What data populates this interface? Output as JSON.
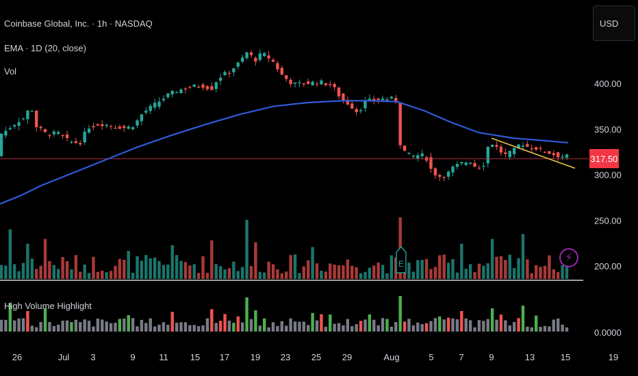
{
  "legend": {
    "symbol": "Coinbase Global, Inc. · 1h · NASDAQ",
    "indicator": "EMA · 1D (20, close)",
    "volume": "Vol",
    "pane2": "High Volume Highlight"
  },
  "currency_button": "USD",
  "last_price_label": "317.50",
  "earnings_marker": "E",
  "colors": {
    "up": "#26a69a",
    "down": "#ef5350",
    "ema": "#2f5bd9",
    "trendline": "#e8c547",
    "price_line": "#b2333d",
    "hv_up": "#4caf50",
    "hv_down": "#ef5350",
    "hv_neutral": "#787b86"
  },
  "chart_data": {
    "type": "candlestick",
    "title": "Coinbase Global, Inc. · 1h · NASDAQ",
    "y_ticks": [
      "400.00",
      "350.00",
      "300.00",
      "250.00",
      "200.00"
    ],
    "y_tick_values": [
      400,
      350,
      300,
      250,
      200
    ],
    "pane2_tick": "0.0000",
    "x_ticks": [
      "26",
      "Jul",
      "3",
      "9",
      "11",
      "15",
      "17",
      "19",
      "23",
      "25",
      "29",
      "Aug",
      "5",
      "7",
      "9",
      "13",
      "15",
      "19"
    ],
    "ylim": [
      185,
      452
    ],
    "last_price": 317.5,
    "price_anchors": [
      [
        0,
        343
      ],
      [
        10,
        347
      ],
      [
        28,
        358
      ],
      [
        40,
        363
      ],
      [
        48,
        377
      ],
      [
        56,
        353
      ],
      [
        70,
        345
      ],
      [
        90,
        345
      ],
      [
        104,
        336
      ],
      [
        120,
        335
      ],
      [
        132,
        352
      ],
      [
        150,
        356
      ],
      [
        170,
        353
      ],
      [
        188,
        351
      ],
      [
        200,
        355
      ],
      [
        212,
        368
      ],
      [
        228,
        376
      ],
      [
        248,
        387
      ],
      [
        262,
        392
      ],
      [
        280,
        396
      ],
      [
        298,
        398
      ],
      [
        312,
        394
      ],
      [
        322,
        406
      ],
      [
        338,
        413
      ],
      [
        352,
        422
      ],
      [
        366,
        436
      ],
      [
        374,
        424
      ],
      [
        386,
        433
      ],
      [
        400,
        426
      ],
      [
        416,
        408
      ],
      [
        432,
        399
      ],
      [
        448,
        400
      ],
      [
        462,
        401
      ],
      [
        474,
        401
      ],
      [
        488,
        398
      ],
      [
        504,
        381
      ],
      [
        514,
        377
      ],
      [
        526,
        368
      ],
      [
        536,
        380
      ],
      [
        550,
        382
      ],
      [
        562,
        383
      ],
      [
        575,
        383
      ],
      [
        583,
        380
      ],
      [
        586,
        337
      ],
      [
        596,
        323
      ],
      [
        606,
        320
      ],
      [
        618,
        322
      ],
      [
        628,
        317
      ],
      [
        634,
        303
      ],
      [
        646,
        298
      ],
      [
        656,
        300
      ],
      [
        664,
        307
      ],
      [
        676,
        312
      ],
      [
        690,
        315
      ],
      [
        700,
        307
      ],
      [
        710,
        312
      ],
      [
        718,
        337
      ],
      [
        730,
        329
      ],
      [
        740,
        321
      ],
      [
        752,
        325
      ],
      [
        764,
        335
      ],
      [
        775,
        330
      ],
      [
        786,
        329
      ],
      [
        796,
        326
      ],
      [
        806,
        324
      ],
      [
        816,
        321
      ],
      [
        828,
        320
      ]
    ],
    "ema_anchors": [
      [
        0,
        268
      ],
      [
        30,
        277
      ],
      [
        60,
        288
      ],
      [
        100,
        300
      ],
      [
        150,
        315
      ],
      [
        200,
        330
      ],
      [
        250,
        343
      ],
      [
        300,
        355
      ],
      [
        350,
        366
      ],
      [
        400,
        375
      ],
      [
        450,
        379
      ],
      [
        500,
        381
      ],
      [
        540,
        381
      ],
      [
        580,
        380
      ],
      [
        620,
        370
      ],
      [
        660,
        357
      ],
      [
        700,
        346
      ],
      [
        750,
        340
      ],
      [
        800,
        337
      ],
      [
        830,
        335
      ]
    ],
    "trendline": {
      "x": [
        718,
        840
      ],
      "y": [
        340,
        307
      ]
    },
    "candle_count": 130,
    "candle_x_start": 2,
    "candle_x_end": 828,
    "volume_seed": 7,
    "high_volume_bars": [
      {
        "x": 14,
        "vol": 0.75
      },
      {
        "x": 38,
        "vol": 0.45
      },
      {
        "x": 66,
        "vol": 0.55
      },
      {
        "x": 186,
        "vol": 0.3
      },
      {
        "x": 250,
        "vol": 0.42
      },
      {
        "x": 310,
        "vol": 0.52
      },
      {
        "x": 362,
        "vol": 0.95
      },
      {
        "x": 374,
        "vol": 0.48
      },
      {
        "x": 458,
        "vol": 0.38
      },
      {
        "x": 586,
        "vol": 1.0
      },
      {
        "x": 672,
        "vol": 0.45
      },
      {
        "x": 718,
        "vol": 0.55
      },
      {
        "x": 766,
        "vol": 0.65
      }
    ]
  }
}
